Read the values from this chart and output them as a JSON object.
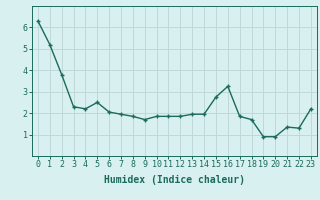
{
  "x": [
    0,
    1,
    2,
    3,
    4,
    5,
    6,
    7,
    8,
    9,
    10,
    11,
    12,
    13,
    14,
    15,
    16,
    17,
    18,
    19,
    20,
    21,
    22,
    23
  ],
  "y": [
    6.3,
    5.2,
    3.8,
    2.3,
    2.2,
    2.5,
    2.05,
    1.95,
    1.85,
    1.7,
    1.85,
    1.85,
    1.85,
    1.95,
    1.95,
    2.75,
    3.25,
    1.85,
    1.7,
    0.9,
    0.9,
    1.35,
    1.3,
    2.2
  ],
  "line_color": "#1a6b5a",
  "marker": "+",
  "marker_size": 3.5,
  "line_width": 1.0,
  "bg_color": "#d9f0f0",
  "grid_color": "#c0d8d8",
  "axis_color": "#1a6b5a",
  "xlabel": "Humidex (Indice chaleur)",
  "xlabel_fontsize": 7,
  "tick_fontsize": 6,
  "ylim": [
    0,
    7
  ],
  "xlim": [
    -0.5,
    23.5
  ],
  "yticks": [
    1,
    2,
    3,
    4,
    5,
    6
  ],
  "xticks": [
    0,
    1,
    2,
    3,
    4,
    5,
    6,
    7,
    8,
    9,
    10,
    11,
    12,
    13,
    14,
    15,
    16,
    17,
    18,
    19,
    20,
    21,
    22,
    23
  ]
}
